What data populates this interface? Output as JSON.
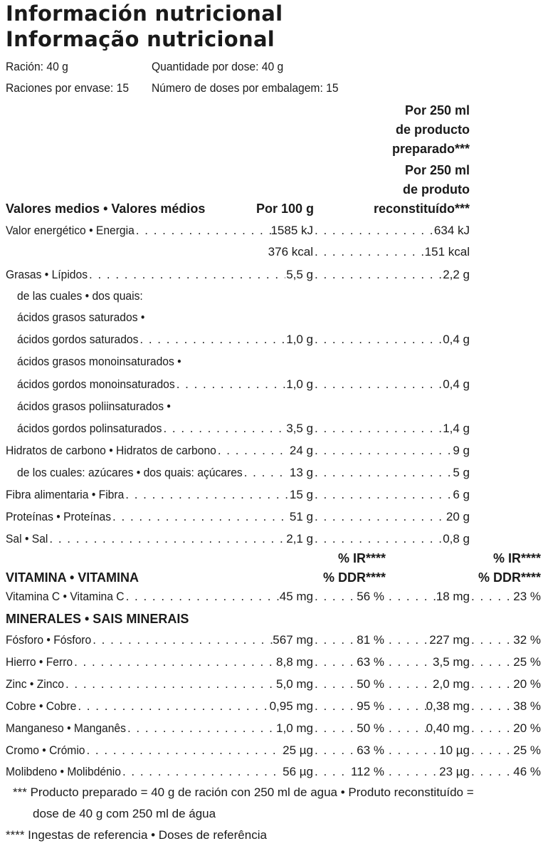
{
  "titles": [
    "Información nutricional",
    "Informação nutricional"
  ],
  "serving": {
    "es_size": "Ración: 40 g",
    "pt_size": "Quantidade por dose: 40 g",
    "es_per_pack": "Raciones por envase: 15",
    "pt_per_pack": "Número de doses por embalagem: 15"
  },
  "headers": {
    "col2_lines": [
      "Por 250 ml",
      "de producto",
      "preparado***",
      "Por 250 ml",
      "de produto",
      "reconstituído***"
    ],
    "avg": "Valores medios • Valores médios",
    "per100": "Por 100 g"
  },
  "nutrients": [
    {
      "label": "Valor energético • Energia",
      "v1": "1585 kJ",
      "v2": "634 kJ",
      "indent": false
    },
    {
      "label": "",
      "v1": "376 kcal",
      "v2": "151 kcal",
      "indent": false
    },
    {
      "label": "Grasas • Lípidos",
      "v1": "5,5 g",
      "v2": "2,2 g",
      "indent": false
    },
    {
      "label": "de las cuales • dos quais:",
      "v1": "",
      "v2": "",
      "indent": true
    },
    {
      "label": "ácidos grasos saturados •",
      "v1": "",
      "v2": "",
      "indent": true
    },
    {
      "label": "ácidos gordos saturados",
      "v1": "1,0 g",
      "v2": "0,4 g",
      "indent": true
    },
    {
      "label": "ácidos grasos monoinsaturados •",
      "v1": "",
      "v2": "",
      "indent": true
    },
    {
      "label": "ácidos gordos monoinsaturados",
      "v1": "1,0 g",
      "v2": "0,4 g",
      "indent": true
    },
    {
      "label": "ácidos grasos poliinsaturados •",
      "v1": "",
      "v2": "",
      "indent": true
    },
    {
      "label": "ácidos gordos polinsaturados",
      "v1": "3,5 g",
      "v2": "1,4 g",
      "indent": true
    },
    {
      "label": "Hidratos de carbono • Hidratos de carbono",
      "v1": "24 g",
      "v2": "9 g",
      "indent": false
    },
    {
      "label": "de los cuales: azúcares • dos quais: açúcares",
      "v1": "13 g",
      "v2": "5 g",
      "indent": true
    },
    {
      "label": "Fibra alimentaria • Fibra",
      "v1": "15 g",
      "v2": "6 g",
      "indent": false
    },
    {
      "label": "Proteínas • Proteínas",
      "v1": "51 g",
      "v2": "20 g",
      "indent": false
    },
    {
      "label": "Sal • Sal",
      "v1": "2,1 g",
      "v2": "0,8 g",
      "indent": false
    }
  ],
  "ir_header": {
    "a": "% IR****",
    "b": "% DDR****"
  },
  "vitamins_header": "VITAMINA • VITAMINA",
  "vitamins": [
    {
      "label": "Vitamina C • Vitamina C",
      "v1": "45 mg",
      "p1": "56 %",
      "v2": "18 mg",
      "p2": "23 %"
    }
  ],
  "minerals_header": "MINERALES • SAIS MINERAIS",
  "minerals": [
    {
      "label": "Fósforo • Fósforo",
      "v1": "567 mg",
      "p1": "81 %",
      "v2": "227 mg",
      "p2": "32 %"
    },
    {
      "label": "Hierro • Ferro",
      "v1": "8,8 mg",
      "p1": "63 %",
      "v2": "3,5 mg",
      "p2": "25 %"
    },
    {
      "label": "Zinc • Zinco",
      "v1": "5,0 mg",
      "p1": "50 %",
      "v2": "2,0 mg",
      "p2": "20 %"
    },
    {
      "label": "Cobre • Cobre",
      "v1": "0,95 mg",
      "p1": "95 %",
      "v2": "0,38 mg",
      "p2": "38 %"
    },
    {
      "label": "Manganeso • Manganês",
      "v1": "1,0 mg",
      "p1": "50 %",
      "v2": "0,40 mg",
      "p2": "20 %"
    },
    {
      "label": "Cromo • Crómio",
      "v1": "25 µg",
      "p1": "63 %",
      "v2": "10 µg",
      "p2": "25 %"
    },
    {
      "label": "Molibdeno • Molibdénio",
      "v1": "56 µg",
      "p1": "112 %",
      "v2": "23 µg",
      "p2": "46 %"
    }
  ],
  "footnotes": {
    "f3_line1": "*** Producto preparado = 40 g de ración con 250 ml de agua • Produto reconstituído =",
    "f3_line2": "dose de 40 g com 250 ml de água",
    "f4": "**** Ingestas de referencia • Doses de referência"
  }
}
